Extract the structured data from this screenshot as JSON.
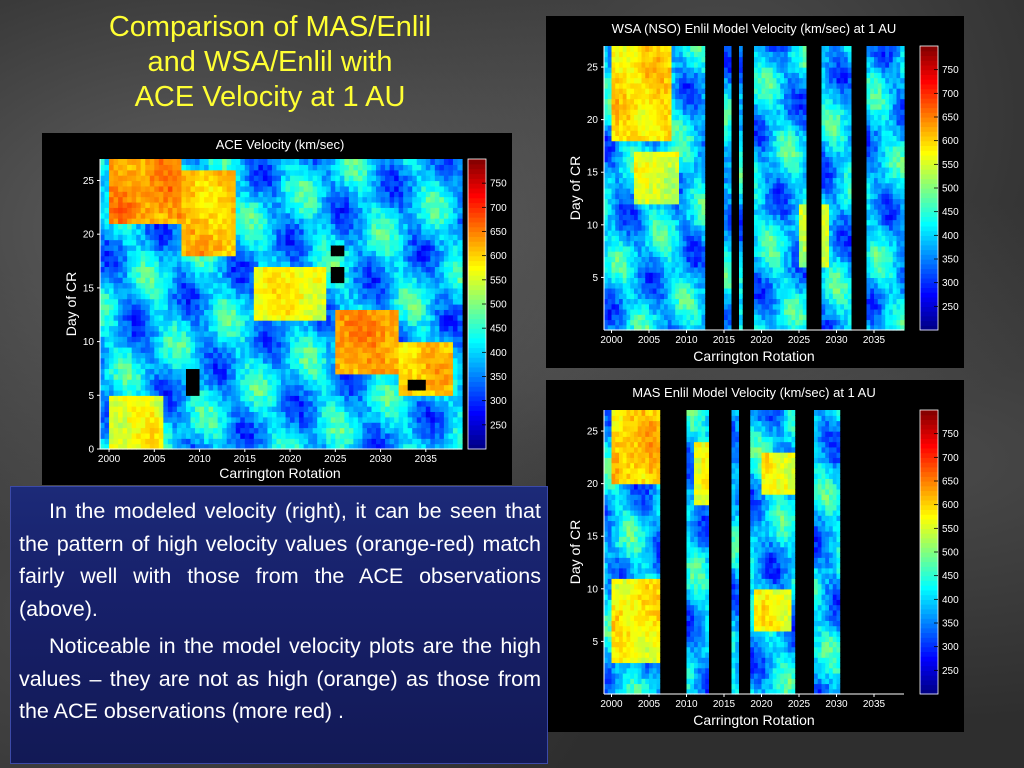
{
  "slide": {
    "title_lines": [
      "Comparison of MAS/Enlil",
      "and WSA/Enlil with",
      "ACE Velocity at 1 AU"
    ],
    "paragraphs": [
      "In the modeled velocity (right), it can be seen that the pattern of high velocity values (orange-red) match fairly well with those from the  ACE observations (above).",
      "Noticeable in the model velocity plots are the high values – they are not as high (orange) as those from the ACE observations (more red) ."
    ]
  },
  "chart_data": [
    {
      "type": "heatmap",
      "title": "ACE Velocity (km/sec)",
      "xlabel": "Carrington Rotation",
      "ylabel": "Day of CR",
      "xlim": [
        1999,
        2039
      ],
      "ylim": [
        0,
        27
      ],
      "xticks": [
        2000,
        2005,
        2010,
        2015,
        2020,
        2025,
        2030,
        2035
      ],
      "yticks": [
        0,
        5,
        10,
        15,
        20,
        25
      ],
      "colorbar": {
        "min": 200,
        "max": 800,
        "ticks": [
          250,
          300,
          350,
          400,
          450,
          500,
          550,
          600,
          650,
          700,
          750
        ]
      },
      "high_speed_bands": [
        {
          "x": [
            2000,
            2008
          ],
          "y": [
            21,
            27
          ],
          "value": 740
        },
        {
          "x": [
            2008,
            2014
          ],
          "y": [
            18,
            26
          ],
          "value": 700
        },
        {
          "x": [
            2016,
            2024
          ],
          "y": [
            12,
            17
          ],
          "value": 650
        },
        {
          "x": [
            2025,
            2032
          ],
          "y": [
            7,
            13
          ],
          "value": 740
        },
        {
          "x": [
            2032,
            2038
          ],
          "y": [
            5,
            10
          ],
          "value": 700
        },
        {
          "x": [
            2000,
            2006
          ],
          "y": [
            0,
            5
          ],
          "value": 650
        }
      ],
      "data_gaps": [
        {
          "x": [
            2008.5,
            2010
          ],
          "y": [
            5,
            7.5
          ]
        },
        {
          "x": [
            2024.5,
            2026
          ],
          "y": [
            15.5,
            17
          ]
        },
        {
          "x": [
            2024.5,
            2026
          ],
          "y": [
            18,
            19
          ]
        },
        {
          "x": [
            2033,
            2035
          ],
          "y": [
            5.5,
            6.5
          ]
        }
      ]
    },
    {
      "type": "heatmap",
      "title": "WSA (NSO) Enlil Model Velocity (km/sec) at 1 AU",
      "xlabel": "Carrington Rotation",
      "ylabel": "Day of CR",
      "xlim": [
        1999,
        2039
      ],
      "ylim": [
        0,
        27
      ],
      "xticks": [
        2000,
        2005,
        2010,
        2015,
        2020,
        2025,
        2030,
        2035
      ],
      "yticks": [
        5,
        10,
        15,
        20,
        25
      ],
      "colorbar": {
        "min": 200,
        "max": 800,
        "ticks": [
          250,
          300,
          350,
          400,
          450,
          500,
          550,
          600,
          650,
          700,
          750
        ]
      },
      "high_speed_bands": [
        {
          "x": [
            2000,
            2008
          ],
          "y": [
            18,
            27
          ],
          "value": 680
        },
        {
          "x": [
            2003,
            2009
          ],
          "y": [
            12,
            17
          ],
          "value": 620
        },
        {
          "x": [
            2025,
            2029
          ],
          "y": [
            6,
            12
          ],
          "value": 600
        }
      ],
      "data_gaps": [
        {
          "x": [
            2012.5,
            2015
          ],
          "y": [
            0,
            27
          ]
        },
        {
          "x": [
            2016,
            2017
          ],
          "y": [
            0,
            27
          ]
        },
        {
          "x": [
            2017.6,
            2019.2
          ],
          "y": [
            0,
            27
          ]
        },
        {
          "x": [
            2026,
            2028
          ],
          "y": [
            0,
            27
          ]
        },
        {
          "x": [
            2032,
            2034
          ],
          "y": [
            0,
            27
          ]
        }
      ]
    },
    {
      "type": "heatmap",
      "title": "MAS Enlil Model Velocity (km/sec) at 1 AU",
      "xlabel": "Carrington Rotation",
      "ylabel": "Day of CR",
      "xlim": [
        1999,
        2039
      ],
      "ylim": [
        0,
        27
      ],
      "xticks": [
        2000,
        2005,
        2010,
        2015,
        2020,
        2025,
        2030,
        2035
      ],
      "yticks": [
        5,
        10,
        15,
        20,
        25
      ],
      "colorbar": {
        "min": 200,
        "max": 800,
        "ticks": [
          250,
          300,
          350,
          400,
          450,
          500,
          550,
          600,
          650,
          700,
          750
        ]
      },
      "high_speed_bands": [
        {
          "x": [
            2000,
            2007
          ],
          "y": [
            20,
            27
          ],
          "value": 700
        },
        {
          "x": [
            2000,
            2007
          ],
          "y": [
            3,
            11
          ],
          "value": 660
        },
        {
          "x": [
            2011,
            2014
          ],
          "y": [
            18,
            24
          ],
          "value": 640
        },
        {
          "x": [
            2020,
            2025
          ],
          "y": [
            19,
            23
          ],
          "value": 650
        },
        {
          "x": [
            2019,
            2024
          ],
          "y": [
            6,
            10
          ],
          "value": 640
        }
      ],
      "data_gaps": [
        {
          "x": [
            2006.5,
            2010
          ],
          "y": [
            0,
            27
          ]
        },
        {
          "x": [
            2013,
            2016
          ],
          "y": [
            0,
            27
          ]
        },
        {
          "x": [
            2017,
            2018.5
          ],
          "y": [
            0,
            27
          ]
        },
        {
          "x": [
            2024.5,
            2027
          ],
          "y": [
            0,
            27
          ]
        },
        {
          "x": [
            2030.5,
            2039
          ],
          "y": [
            0,
            27
          ]
        }
      ]
    }
  ]
}
